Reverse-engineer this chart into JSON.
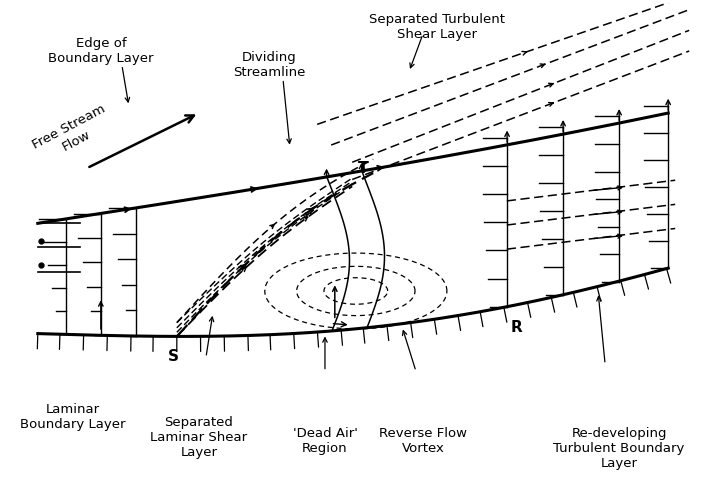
{
  "bg_color": "#ffffff",
  "labels": {
    "separated_turbulent": "Separated Turbulent\nShear Layer",
    "dividing_streamline": "Dividing\nStreamline",
    "edge_boundary": "Edge of\nBoundary Layer",
    "free_stream": "Free Stream\nFlow",
    "laminar_bl": "Laminar\nBoundary Layer",
    "separated_laminar": "Separated\nLaminar Shear\nLayer",
    "dead_air": "'Dead Air'\nRegion",
    "reverse_flow": "Reverse Flow\nVortex",
    "redeveloping": "Re-developing\nTurbulent Boundary\nLayer"
  }
}
